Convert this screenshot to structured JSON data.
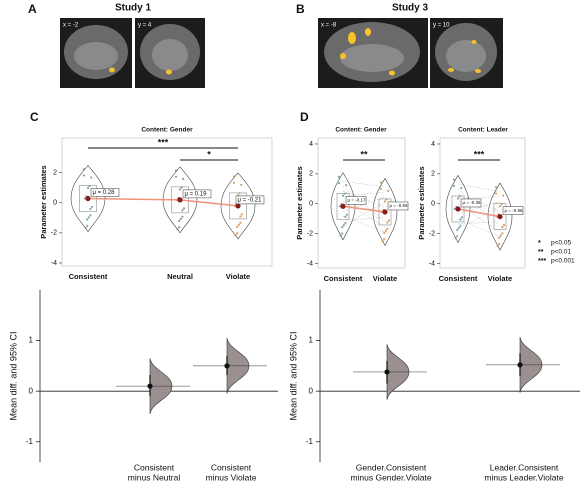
{
  "panels": [
    {
      "letter": "A",
      "title": "Study 1",
      "slices": [
        "x = -2",
        "y = 4"
      ]
    },
    {
      "letter": "B",
      "title": "Study 3",
      "slices": [
        "x = -8",
        "y = 10"
      ]
    },
    {
      "letter": "C"
    },
    {
      "letter": "D"
    }
  ],
  "significance_legend": [
    {
      "stars": "*",
      "label": "p<0.05"
    },
    {
      "stars": "**",
      "label": "p<0.01"
    },
    {
      "stars": "***",
      "label": "p<0.001"
    }
  ],
  "chart_data": [
    {
      "type": "violin",
      "title": "Content: Gender",
      "y_label": "Parameter estimates",
      "categories": [
        "Consistent",
        "Neutral",
        "Violate"
      ],
      "values": [
        0.28,
        0.19,
        -0.21
      ],
      "value_labels": [
        "μ = 0.28",
        "μ = 0.19",
        "μ = -0.21"
      ],
      "colors": [
        "#5f8fa8",
        "#7a7a7a",
        "#c8894a"
      ],
      "line_color": "#f0937a",
      "ylim": [
        -4.2,
        4.3
      ],
      "yticks": [
        -4,
        -2,
        0,
        2
      ],
      "significance": [
        "***",
        "*"
      ]
    },
    {
      "type": "violin",
      "title": "Content: Gender",
      "y_label": "Parameter estimates",
      "categories": [
        "Consistent",
        "Violate"
      ],
      "values": [
        -0.17,
        -0.55
      ],
      "value_labels": [
        "μ = -0.17",
        "μ = -0.55"
      ],
      "colors": [
        "#5f8fa8",
        "#c8894a"
      ],
      "line_color": "#f0937a",
      "ylim": [
        -4.3,
        4.4
      ],
      "yticks": [
        -4,
        -2,
        0,
        2,
        4
      ],
      "significance": [
        "**"
      ]
    },
    {
      "type": "violin",
      "title": "Content: Leader",
      "y_label": "Parameter estimates",
      "categories": [
        "Consistent",
        "Violate"
      ],
      "values": [
        -0.35,
        -0.86
      ],
      "value_labels": [
        "μ = -0.35",
        "μ = -0.86"
      ],
      "colors": [
        "#5f8fa8",
        "#c8894a"
      ],
      "line_color": "#f0937a",
      "ylim": [
        -4.3,
        4.4
      ],
      "yticks": [
        -4,
        -2,
        0,
        2,
        4
      ],
      "significance": [
        "***"
      ]
    },
    {
      "type": "estimation",
      "y_label": "Mean diff. and 95% CI",
      "categories": [
        [
          "Consistent",
          "minus Neutral"
        ],
        [
          "Consistent",
          "minus Violate"
        ]
      ],
      "values": [
        0.1,
        0.5
      ],
      "ci_low": [
        -0.1,
        0.32
      ],
      "ci_high": [
        0.32,
        0.7
      ],
      "color": "#9a9090",
      "ylim": [
        -1.4,
        2.0
      ],
      "yticks": [
        -1,
        0,
        1
      ]
    },
    {
      "type": "estimation",
      "y_label": "Mean diff. and 95% CI",
      "categories": [
        [
          "Gender.Consistent",
          "minus Gender.Violate"
        ],
        [
          "Leader.Consistent",
          "minus Leader.Violate"
        ]
      ],
      "values": [
        0.38,
        0.52
      ],
      "ci_low": [
        0.15,
        0.3
      ],
      "ci_high": [
        0.6,
        0.75
      ],
      "color": "#9a9090",
      "ylim": [
        -1.4,
        2.0
      ],
      "yticks": [
        -1,
        0,
        1
      ]
    }
  ]
}
